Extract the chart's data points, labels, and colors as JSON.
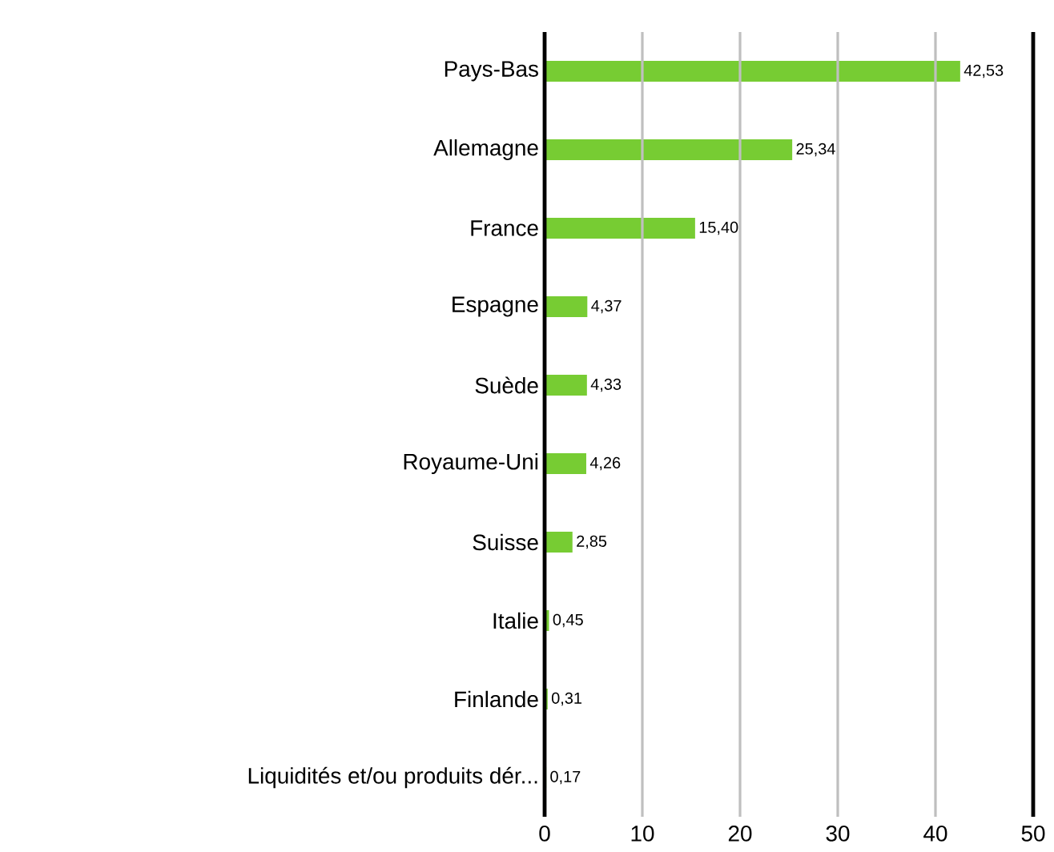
{
  "chart_data": {
    "type": "bar",
    "orientation": "horizontal",
    "categories": [
      "Pays-Bas",
      "Allemagne",
      "France",
      "Espagne",
      "Suède",
      "Royaume-Uni",
      "Suisse",
      "Italie",
      "Finlande",
      "Liquidités et/ou produits dér..."
    ],
    "values": [
      42.53,
      25.34,
      15.4,
      4.37,
      4.33,
      4.26,
      2.85,
      0.45,
      0.31,
      0.17
    ],
    "value_labels": [
      "42,53",
      "25,34",
      "15,40",
      "4,37",
      "4,33",
      "4,26",
      "2,85",
      "0,45",
      "0,31",
      "0,17"
    ],
    "color": "#77cc33",
    "xlim": [
      0,
      50
    ],
    "xticks": [
      0,
      10,
      20,
      30,
      40,
      50
    ],
    "grid": "x"
  }
}
